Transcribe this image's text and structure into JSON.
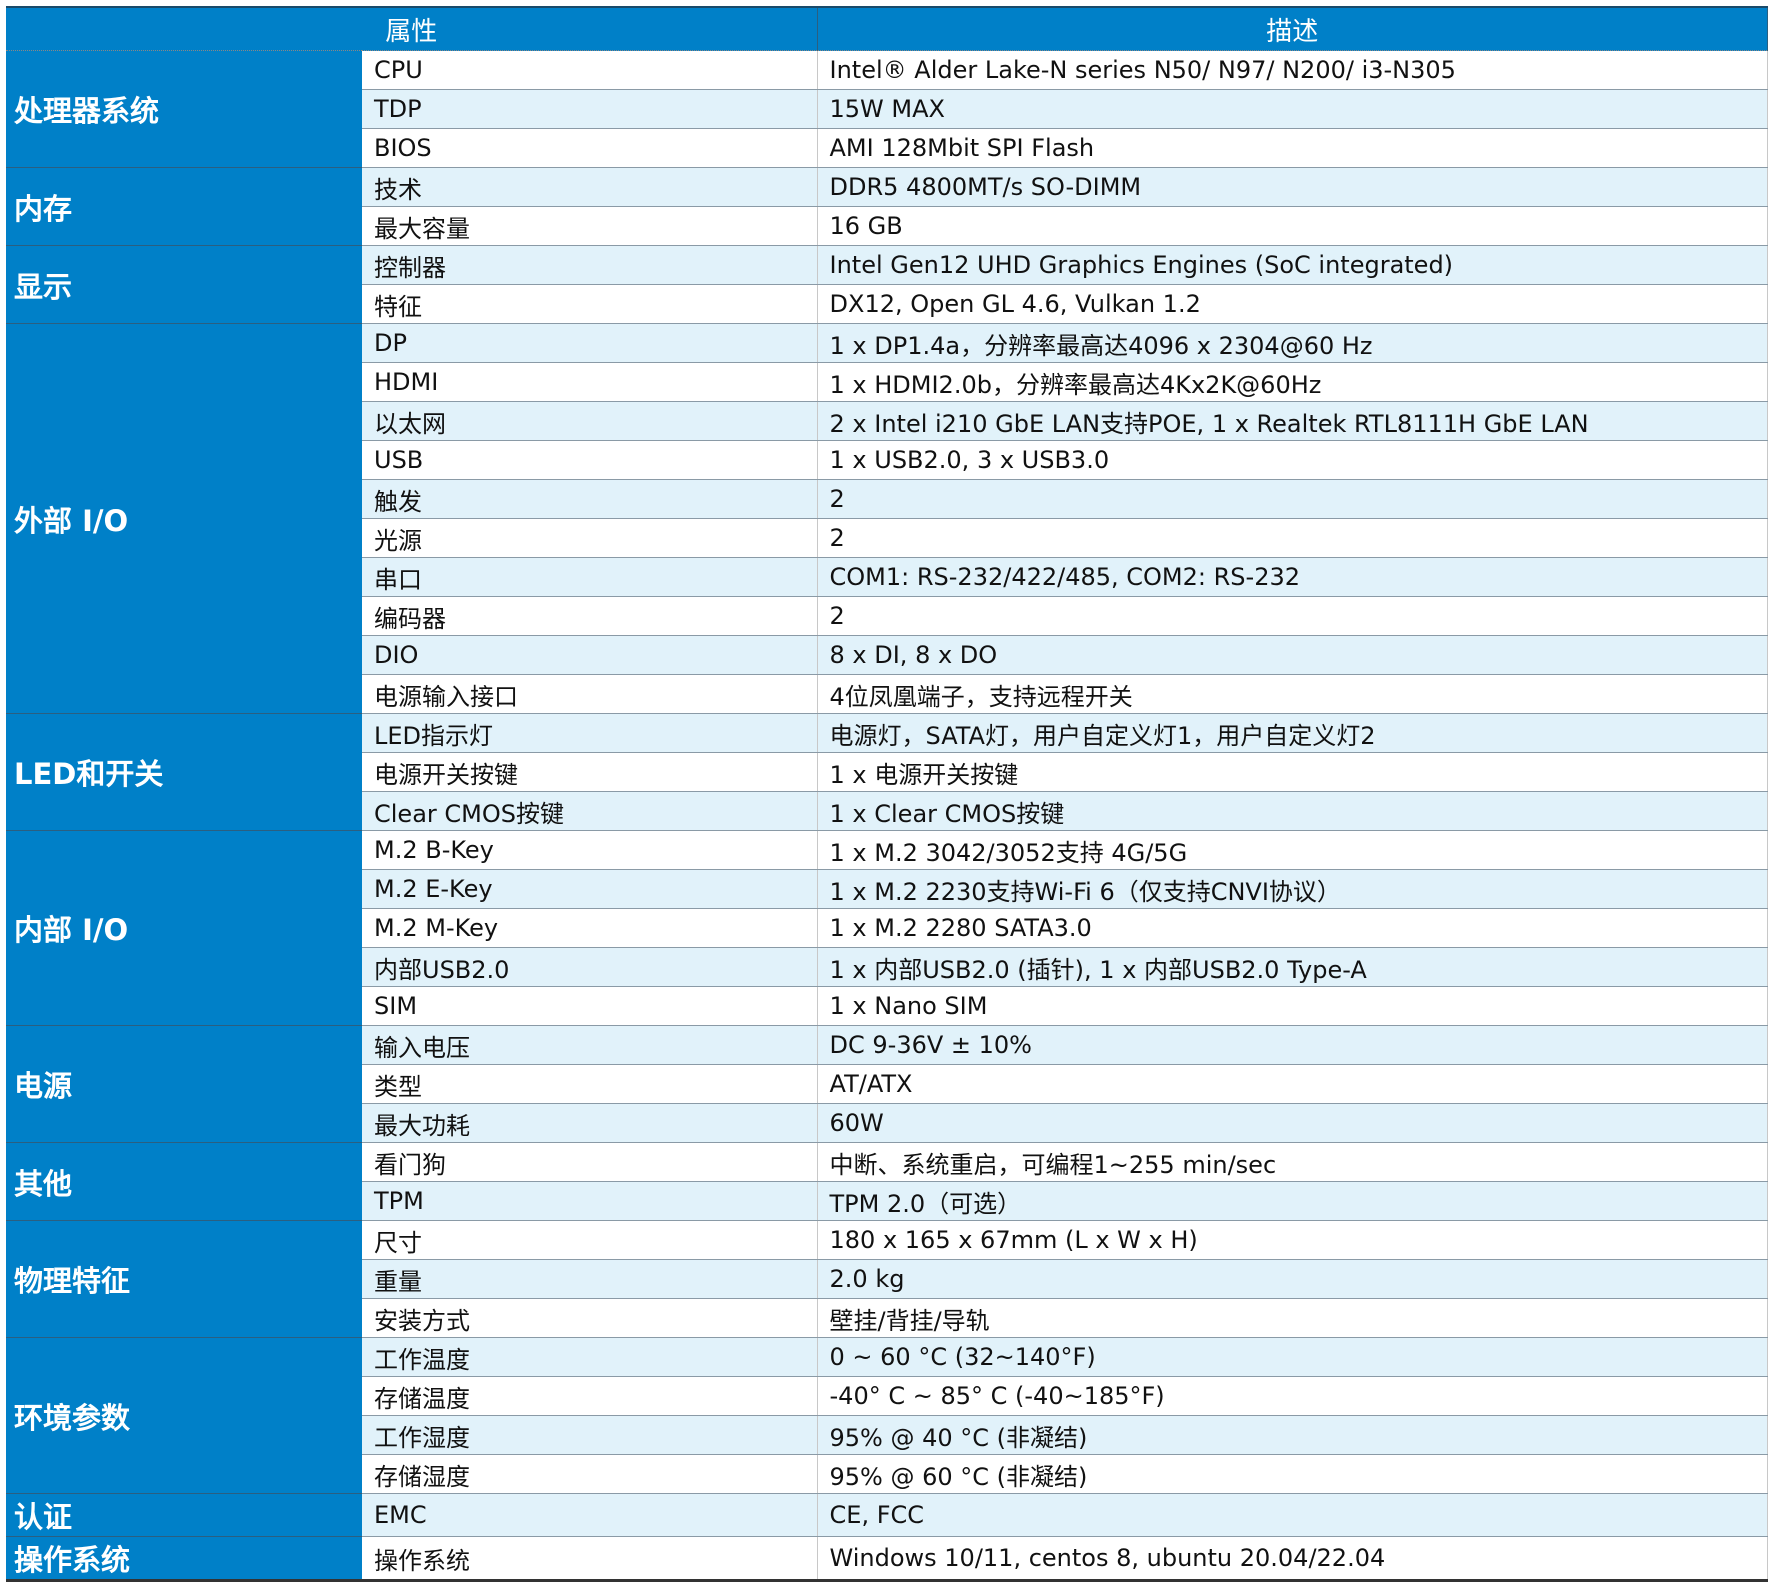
{
  "header": {
    "attribute": "属性",
    "description": "描述"
  },
  "colors": {
    "header_bg": "#0080c8",
    "row_alt": "#e1f2fa"
  },
  "groups": [
    {
      "name": "处理器系统",
      "rows": [
        [
          "CPU",
          "Intel® Alder Lake-N series N50/ N97/ N200/ i3-N305"
        ],
        [
          "TDP",
          "15W MAX"
        ],
        [
          "BIOS",
          "AMI 128Mbit SPI Flash"
        ]
      ]
    },
    {
      "name": "内存",
      "rows": [
        [
          "技术",
          "DDR5 4800MT/s SO-DIMM"
        ],
        [
          "最大容量",
          "16 GB"
        ]
      ]
    },
    {
      "name": "显示",
      "rows": [
        [
          "控制器",
          "Intel Gen12 UHD Graphics Engines (SoC integrated)"
        ],
        [
          "特征",
          "DX12, Open GL 4.6, Vulkan 1.2"
        ]
      ]
    },
    {
      "name": "外部 I/O",
      "rows": [
        [
          "DP",
          "1 x DP1.4a，分辨率最高达4096 x 2304@60 Hz"
        ],
        [
          "HDMI",
          "1 x HDMI2.0b，分辨率最高达4Kx2K@60Hz"
        ],
        [
          "以太网",
          "2 x Intel i210 GbE LAN支持POE, 1 x Realtek RTL8111H GbE LAN"
        ],
        [
          "USB",
          "1 x USB2.0, 3 x USB3.0"
        ],
        [
          "触发",
          "2"
        ],
        [
          "光源",
          "2"
        ],
        [
          "串口",
          "COM1: RS-232/422/485, COM2: RS-232"
        ],
        [
          "编码器",
          "2"
        ],
        [
          "DIO",
          "8 x DI, 8 x DO"
        ],
        [
          "电源输入接口",
          "4位凤凰端子，支持远程开关"
        ]
      ]
    },
    {
      "name": "LED和开关",
      "rows": [
        [
          "LED指示灯",
          "电源灯，SATA灯，用户自定义灯1，用户自定义灯2"
        ],
        [
          "电源开关按键",
          "1 x 电源开关按键"
        ],
        [
          "Clear CMOS按键",
          "1 x Clear CMOS按键"
        ]
      ]
    },
    {
      "name": "内部 I/O",
      "rows": [
        [
          "M.2 B-Key",
          "1 x M.2 3042/3052支持 4G/5G"
        ],
        [
          "M.2 E-Key",
          "1 x M.2 2230支持Wi-Fi 6（仅支持CNVI协议）"
        ],
        [
          "M.2 M-Key",
          "1 x M.2 2280 SATA3.0"
        ],
        [
          "内部USB2.0",
          "1 x 内部USB2.0 (插针), 1 x 内部USB2.0 Type-A"
        ],
        [
          "SIM",
          "1 x Nano SIM"
        ]
      ]
    },
    {
      "name": "电源",
      "rows": [
        [
          "输入电压",
          "DC 9-36V ± 10%"
        ],
        [
          "类型",
          "AT/ATX"
        ],
        [
          "最大功耗",
          "60W"
        ]
      ]
    },
    {
      "name": "其他",
      "rows": [
        [
          "看门狗",
          "中断、系统重启，可编程1~255 min/sec"
        ],
        [
          "TPM",
          "TPM 2.0（可选）"
        ]
      ]
    },
    {
      "name": "物理特征",
      "rows": [
        [
          "尺寸",
          "180 x 165 x 67mm (L x W x H)"
        ],
        [
          "重量",
          "2.0 kg"
        ],
        [
          "安装方式",
          "壁挂/背挂/导轨"
        ]
      ]
    },
    {
      "name": "环境参数",
      "rows": [
        [
          "工作温度",
          "0 ~ 60 °C (32~140°F)"
        ],
        [
          "存储温度",
          "-40° C ~ 85° C (-40~185°F)"
        ],
        [
          "工作湿度",
          "95% @ 40 °C (非凝结)"
        ],
        [
          "存储湿度",
          "95% @ 60 °C (非凝结)"
        ]
      ]
    },
    {
      "name": "认证",
      "rows": [
        [
          "EMC",
          "CE, FCC"
        ]
      ]
    },
    {
      "name": "操作系统",
      "rows": [
        [
          "操作系统",
          "Windows 10/11, centos 8, ubuntu 20.04/22.04"
        ]
      ]
    }
  ]
}
